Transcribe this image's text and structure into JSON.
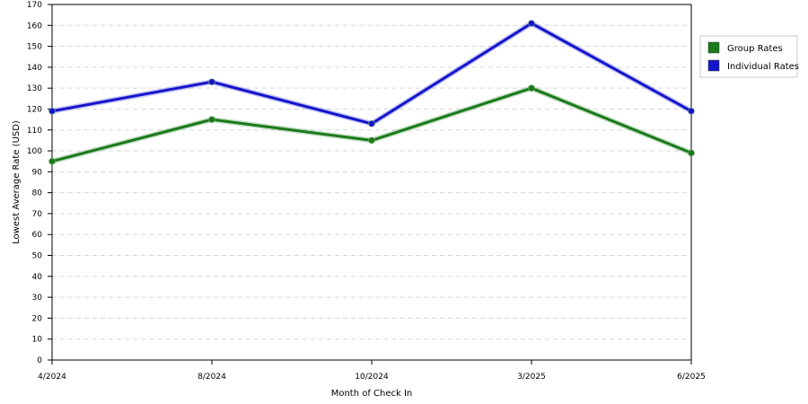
{
  "chart_data": {
    "type": "line",
    "title": "",
    "xlabel": "Month of Check In",
    "ylabel": "Lowest Average Rate (USD)",
    "categories": [
      "4/2024",
      "8/2024",
      "10/2024",
      "3/2025",
      "6/2025"
    ],
    "ylim": [
      0,
      170
    ],
    "y_ticks": [
      0,
      10,
      20,
      30,
      40,
      50,
      60,
      70,
      80,
      90,
      100,
      110,
      120,
      130,
      140,
      150,
      160,
      170
    ],
    "grid": true,
    "legend_position": "right",
    "series": [
      {
        "name": "Group Rates",
        "color": "#1a7a1a",
        "values": [
          95,
          115,
          105,
          130,
          99
        ]
      },
      {
        "name": "Individual Rates",
        "color": "#1414cc",
        "values": [
          119,
          133,
          113,
          161,
          119
        ]
      }
    ]
  }
}
